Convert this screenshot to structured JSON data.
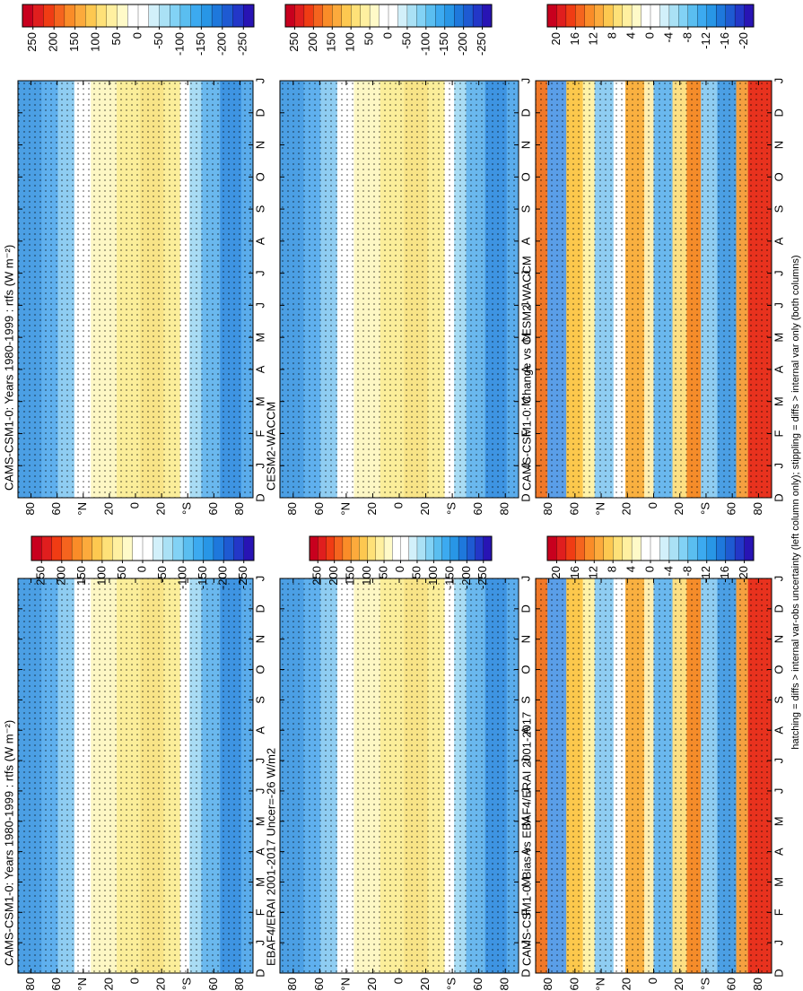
{
  "note": "hatching = diffs > internal var-obs uncertainty (left column only); stippling = diffs > internal var only (both columns)",
  "chart_data": [
    {
      "type": "contour",
      "title": "CAMS-CSM1-0: Years 1980-1999 : rtfs (W m⁻²)",
      "categories": [
        "D",
        "J",
        "F",
        "M",
        "A",
        "M",
        "J",
        "J",
        "A",
        "S",
        "O",
        "N",
        "D",
        "J"
      ],
      "ylim": [
        -90,
        90
      ],
      "yticks": [
        80,
        60,
        {
          "value": 40,
          "label": "°N"
        },
        20,
        0,
        {
          "value": -20,
          "label": "20"
        },
        {
          "value": -40,
          "label": "°S"
        },
        {
          "value": -60,
          "label": "60"
        },
        {
          "value": -80,
          "label": "80"
        }
      ],
      "colorbar": {
        "ticks": [
          250,
          200,
          150,
          100,
          50,
          0,
          -50,
          -100,
          -150,
          -200,
          -250
        ],
        "colors": [
          "#c8001e",
          "#e01e1e",
          "#f03c14",
          "#f5641e",
          "#fa8c28",
          "#fcaa3c",
          "#fdc850",
          "#fee178",
          "#fff0a0",
          "#fffac8",
          "#ffffff",
          "#ffffff",
          "#d2f0fa",
          "#aae1f5",
          "#82d2f5",
          "#5abef0",
          "#3caaf0",
          "#2896e6",
          "#1e78dc",
          "#1e5ad2",
          "#2337c8",
          "#2814b4"
        ]
      }
    },
    {
      "type": "contour",
      "title": "CAMS-CSM1-0: Years 1980-1999 : rtfs (W m⁻²)",
      "categories": [
        "D",
        "J",
        "F",
        "M",
        "A",
        "M",
        "J",
        "J",
        "A",
        "S",
        "O",
        "N",
        "D",
        "J"
      ],
      "ylim": [
        -90,
        90
      ],
      "yticks": [
        80,
        60,
        {
          "value": 40,
          "label": "°N"
        },
        20,
        0,
        {
          "value": -20,
          "label": "20"
        },
        {
          "value": -40,
          "label": "°S"
        },
        {
          "value": -60,
          "label": "60"
        },
        {
          "value": -80,
          "label": "80"
        }
      ],
      "colorbar": {
        "ticks": [
          250,
          200,
          150,
          100,
          50,
          0,
          -50,
          -100,
          -150,
          -200,
          -250
        ],
        "colors": [
          "#c8001e",
          "#e01e1e",
          "#f03c14",
          "#f5641e",
          "#fa8c28",
          "#fcaa3c",
          "#fdc850",
          "#fee178",
          "#fff0a0",
          "#fffac8",
          "#ffffff",
          "#ffffff",
          "#d2f0fa",
          "#aae1f5",
          "#82d2f5",
          "#5abef0",
          "#3caaf0",
          "#2896e6",
          "#1e78dc",
          "#1e5ad2",
          "#2337c8",
          "#2814b4"
        ]
      }
    },
    {
      "type": "contour",
      "title": "CESM2-WACCM",
      "categories": [
        "D",
        "J",
        "F",
        "M",
        "A",
        "M",
        "J",
        "J",
        "A",
        "S",
        "O",
        "N",
        "D",
        "J"
      ],
      "ylim": [
        -90,
        90
      ],
      "yticks": [
        80,
        60,
        {
          "value": 40,
          "label": "°N"
        },
        20,
        0,
        {
          "value": -20,
          "label": "20"
        },
        {
          "value": -40,
          "label": "°S"
        },
        {
          "value": -60,
          "label": "60"
        },
        {
          "value": -80,
          "label": "80"
        }
      ],
      "colorbar": {
        "ticks": [
          250,
          200,
          150,
          100,
          50,
          0,
          -50,
          -100,
          -150,
          -200,
          -250
        ],
        "colors": [
          "#c8001e",
          "#e01e1e",
          "#f03c14",
          "#f5641e",
          "#fa8c28",
          "#fcaa3c",
          "#fdc850",
          "#fee178",
          "#fff0a0",
          "#fffac8",
          "#ffffff",
          "#ffffff",
          "#d2f0fa",
          "#aae1f5",
          "#82d2f5",
          "#5abef0",
          "#3caaf0",
          "#2896e6",
          "#1e78dc",
          "#1e5ad2",
          "#2337c8",
          "#2814b4"
        ]
      }
    },
    {
      "type": "contour",
      "title": "EBAF4/ERAI 2001-2017 Uncer=-26 W/m2",
      "categories": [
        "D",
        "J",
        "F",
        "M",
        "A",
        "M",
        "J",
        "J",
        "A",
        "S",
        "O",
        "N",
        "D",
        "J"
      ],
      "ylim": [
        -90,
        90
      ],
      "yticks": [
        80,
        60,
        {
          "value": 40,
          "label": "°N"
        },
        20,
        0,
        {
          "value": -20,
          "label": "20"
        },
        {
          "value": -40,
          "label": "°S"
        },
        {
          "value": -60,
          "label": "60"
        },
        {
          "value": -80,
          "label": "80"
        }
      ],
      "colorbar": {
        "ticks": [
          250,
          200,
          150,
          100,
          50,
          0,
          -50,
          -100,
          -150,
          -200,
          -250
        ],
        "colors": [
          "#c8001e",
          "#e01e1e",
          "#f03c14",
          "#f5641e",
          "#fa8c28",
          "#fcaa3c",
          "#fdc850",
          "#fee178",
          "#fff0a0",
          "#fffac8",
          "#ffffff",
          "#ffffff",
          "#d2f0fa",
          "#aae1f5",
          "#82d2f5",
          "#5abef0",
          "#3caaf0",
          "#2896e6",
          "#1e78dc",
          "#1e5ad2",
          "#2337c8",
          "#2814b4"
        ]
      }
    },
    {
      "type": "contour-diff",
      "title": "CAMS-CSM1-0: Change vs CESM2-WACCM",
      "categories": [
        "D",
        "J",
        "F",
        "M",
        "A",
        "M",
        "J",
        "J",
        "A",
        "S",
        "O",
        "N",
        "D",
        "J"
      ],
      "ylim": [
        -90,
        90
      ],
      "yticks": [
        80,
        60,
        {
          "value": 40,
          "label": "°N"
        },
        20,
        0,
        {
          "value": -20,
          "label": "20"
        },
        {
          "value": -40,
          "label": "°S"
        },
        {
          "value": -60,
          "label": "60"
        },
        {
          "value": -80,
          "label": "80"
        }
      ],
      "colorbar": {
        "ticks": [
          20,
          16,
          12,
          8,
          4,
          0,
          -4,
          -8,
          -12,
          -16,
          -20
        ],
        "colors": [
          "#c8001e",
          "#e01e1e",
          "#f03c14",
          "#f5641e",
          "#fa8c28",
          "#fcaa3c",
          "#fdc850",
          "#fee178",
          "#fff0a0",
          "#fffac8",
          "#ffffff",
          "#ffffff",
          "#d2f0fa",
          "#aae1f5",
          "#82d2f5",
          "#5abef0",
          "#3caaf0",
          "#2896e6",
          "#1e78dc",
          "#1e5ad2",
          "#2337c8",
          "#2814b4"
        ]
      }
    },
    {
      "type": "contour-diff",
      "title": "CAMS-CSM1-0: Bias vs EBAF4/ERAI 2001-2017",
      "categories": [
        "D",
        "J",
        "F",
        "M",
        "A",
        "M",
        "J",
        "J",
        "A",
        "S",
        "O",
        "N",
        "D",
        "J"
      ],
      "ylim": [
        -90,
        90
      ],
      "yticks": [
        80,
        60,
        {
          "value": 40,
          "label": "°N"
        },
        20,
        0,
        {
          "value": -20,
          "label": "20"
        },
        {
          "value": -40,
          "label": "°S"
        },
        {
          "value": -60,
          "label": "60"
        },
        {
          "value": -80,
          "label": "80"
        }
      ],
      "colorbar": {
        "ticks": [
          20,
          16,
          12,
          8,
          4,
          0,
          -4,
          -8,
          -12,
          -16,
          -20
        ],
        "colors": [
          "#c8001e",
          "#e01e1e",
          "#f03c14",
          "#f5641e",
          "#fa8c28",
          "#fcaa3c",
          "#fdc850",
          "#fee178",
          "#fff0a0",
          "#fffac8",
          "#ffffff",
          "#ffffff",
          "#d2f0fa",
          "#aae1f5",
          "#82d2f5",
          "#5abef0",
          "#3caaf0",
          "#2896e6",
          "#1e78dc",
          "#1e5ad2",
          "#2337c8",
          "#2814b4"
        ]
      }
    }
  ]
}
